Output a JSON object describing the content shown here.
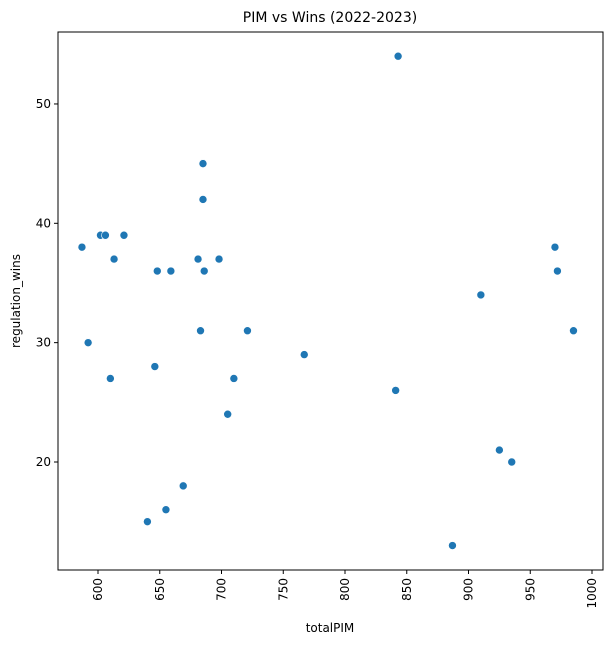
{
  "chart_data": {
    "type": "scatter",
    "title": "PIM vs Wins (2022-2023)",
    "x_label": "totalPIM",
    "y_label": "regulation_wins",
    "color": "#1f77b4",
    "x": [
      587,
      592,
      602,
      606,
      613,
      610,
      621,
      646,
      648,
      659,
      640,
      655,
      669,
      681,
      683,
      685,
      685,
      686,
      698,
      705,
      710,
      721,
      767,
      841,
      843,
      887,
      910,
      925,
      935,
      970,
      972,
      985
    ],
    "values": [
      38,
      30,
      39,
      39,
      37,
      27,
      39,
      28,
      36,
      36,
      15,
      16,
      18,
      37,
      31,
      42,
      45,
      36,
      37,
      24,
      27,
      31,
      29,
      26,
      54,
      13,
      34,
      21,
      20,
      38,
      36,
      31
    ],
    "xlim": [
      567.6,
      1008.9
    ],
    "ylim": [
      10.95,
      56.03
    ],
    "xticks": [
      600,
      650,
      700,
      750,
      800,
      850,
      900,
      950,
      1000
    ],
    "yticks": [
      20,
      30,
      40,
      50
    ]
  }
}
